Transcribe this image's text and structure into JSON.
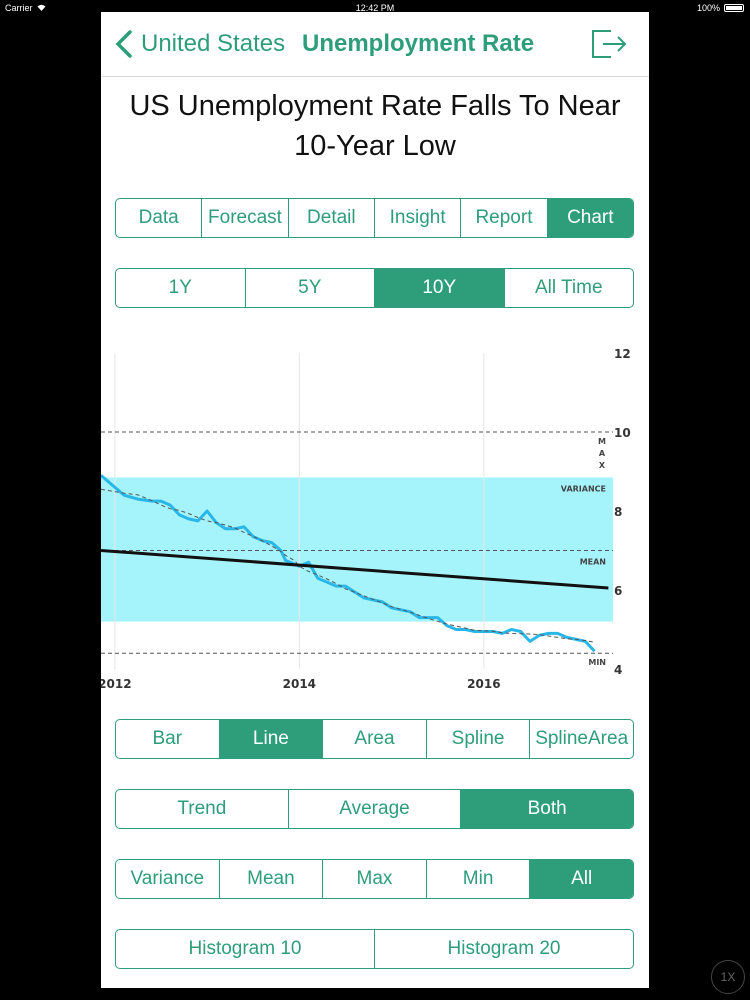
{
  "status_bar": {
    "carrier": "Carrier",
    "time": "12:42 PM",
    "battery": "100%"
  },
  "nav": {
    "back_label": "United States",
    "title": "Unemployment Rate"
  },
  "headline": "US Unemployment Rate Falls To Near 10-Year Low",
  "main_tabs": [
    "Data",
    "Forecast",
    "Detail",
    "Insight",
    "Report",
    "Chart"
  ],
  "main_tabs_selected": "Chart",
  "range_tabs": [
    "1Y",
    "5Y",
    "10Y",
    "All Time"
  ],
  "range_selected": "10Y",
  "chart_type_tabs": [
    "Bar",
    "Line",
    "Area",
    "Spline",
    "SplineArea"
  ],
  "chart_type_selected": "Line",
  "overlay_tabs": [
    "Trend",
    "Average",
    "Both"
  ],
  "overlay_selected": "Both",
  "stat_tabs": [
    "Variance",
    "Mean",
    "Max",
    "Min",
    "All"
  ],
  "stat_selected": "All",
  "histogram_tabs": [
    "Histogram 10",
    "Histogram 20"
  ],
  "home_button": "1X",
  "colors": {
    "accent": "#2e9e7a",
    "variance_band": "#a6f4fb",
    "series": "#29b6e8",
    "trend": "#111111"
  },
  "chart_data": {
    "type": "line",
    "x_ticks": [
      "2012",
      "2014",
      "2016"
    ],
    "y_ticks": [
      "4",
      "6",
      "8",
      "10",
      "12"
    ],
    "xlim": [
      2011.85,
      2017.4
    ],
    "ylim": [
      4,
      12
    ],
    "series": [
      {
        "values": [
          [
            2011.85,
            8.9
          ],
          [
            2012.0,
            8.6
          ],
          [
            2012.1,
            8.4
          ],
          [
            2012.25,
            8.3
          ],
          [
            2012.4,
            8.25
          ],
          [
            2012.5,
            8.25
          ],
          [
            2012.6,
            8.15
          ],
          [
            2012.7,
            7.9
          ],
          [
            2012.8,
            7.8
          ],
          [
            2012.9,
            7.75
          ],
          [
            2013.0,
            8.0
          ],
          [
            2013.1,
            7.7
          ],
          [
            2013.2,
            7.55
          ],
          [
            2013.3,
            7.55
          ],
          [
            2013.4,
            7.6
          ],
          [
            2013.5,
            7.35
          ],
          [
            2013.6,
            7.25
          ],
          [
            2013.7,
            7.2
          ],
          [
            2013.8,
            7.0
          ],
          [
            2013.85,
            6.75
          ],
          [
            2013.95,
            6.65
          ],
          [
            2014.0,
            6.6
          ],
          [
            2014.1,
            6.7
          ],
          [
            2014.2,
            6.3
          ],
          [
            2014.3,
            6.2
          ],
          [
            2014.4,
            6.1
          ],
          [
            2014.5,
            6.1
          ],
          [
            2014.6,
            5.95
          ],
          [
            2014.7,
            5.8
          ],
          [
            2014.8,
            5.75
          ],
          [
            2014.9,
            5.7
          ],
          [
            2015.0,
            5.55
          ],
          [
            2015.1,
            5.5
          ],
          [
            2015.2,
            5.45
          ],
          [
            2015.3,
            5.3
          ],
          [
            2015.4,
            5.3
          ],
          [
            2015.5,
            5.3
          ],
          [
            2015.6,
            5.1
          ],
          [
            2015.7,
            5.0
          ],
          [
            2015.8,
            5.0
          ],
          [
            2015.9,
            4.95
          ],
          [
            2016.0,
            4.95
          ],
          [
            2016.1,
            4.95
          ],
          [
            2016.2,
            4.9
          ],
          [
            2016.3,
            5.0
          ],
          [
            2016.4,
            4.95
          ],
          [
            2016.5,
            4.7
          ],
          [
            2016.6,
            4.85
          ],
          [
            2016.7,
            4.9
          ],
          [
            2016.8,
            4.9
          ],
          [
            2016.9,
            4.8
          ],
          [
            2017.0,
            4.75
          ],
          [
            2017.1,
            4.7
          ],
          [
            2017.2,
            4.45
          ]
        ]
      }
    ],
    "trend_line": [
      [
        2011.85,
        7.0
      ],
      [
        2017.35,
        6.05
      ]
    ],
    "max_line": 10,
    "mean_line": 7,
    "min_line": 4.4,
    "variance_band": [
      5.2,
      8.85
    ],
    "annotations": {
      "max": "MAX",
      "variance": "VARIANCE",
      "mean": "MEAN",
      "min": "MIN"
    },
    "grid": true
  }
}
